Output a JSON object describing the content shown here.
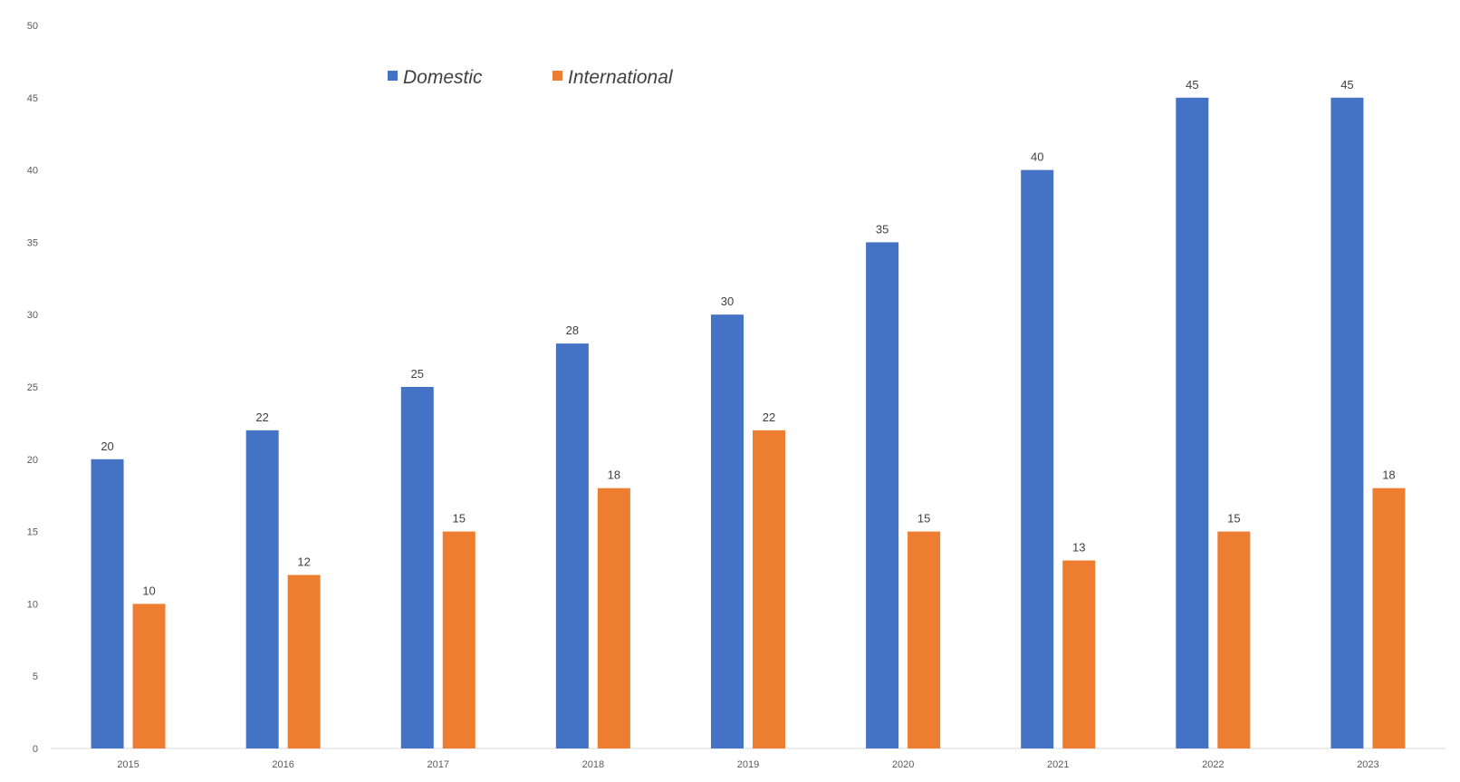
{
  "chart_data": {
    "type": "bar",
    "title": "",
    "xlabel": "",
    "ylabel": "",
    "categories": [
      "2015",
      "2016",
      "2017",
      "2018",
      "2019",
      "2020",
      "2021",
      "2022",
      "2023"
    ],
    "series": [
      {
        "name": "Domestic",
        "color": "#4472C4",
        "values": [
          20,
          22,
          25,
          28,
          30,
          35,
          40,
          45,
          45
        ]
      },
      {
        "name": "International",
        "color": "#ED7D31",
        "values": [
          10,
          12,
          15,
          18,
          22,
          15,
          13,
          15,
          18
        ]
      }
    ],
    "ylim": [
      0,
      50
    ],
    "yticks": [
      0,
      5,
      10,
      15,
      20,
      25,
      30,
      35,
      40,
      45,
      50
    ],
    "grid": false,
    "data_labels": true,
    "legend": {
      "placement": "top-left"
    }
  }
}
